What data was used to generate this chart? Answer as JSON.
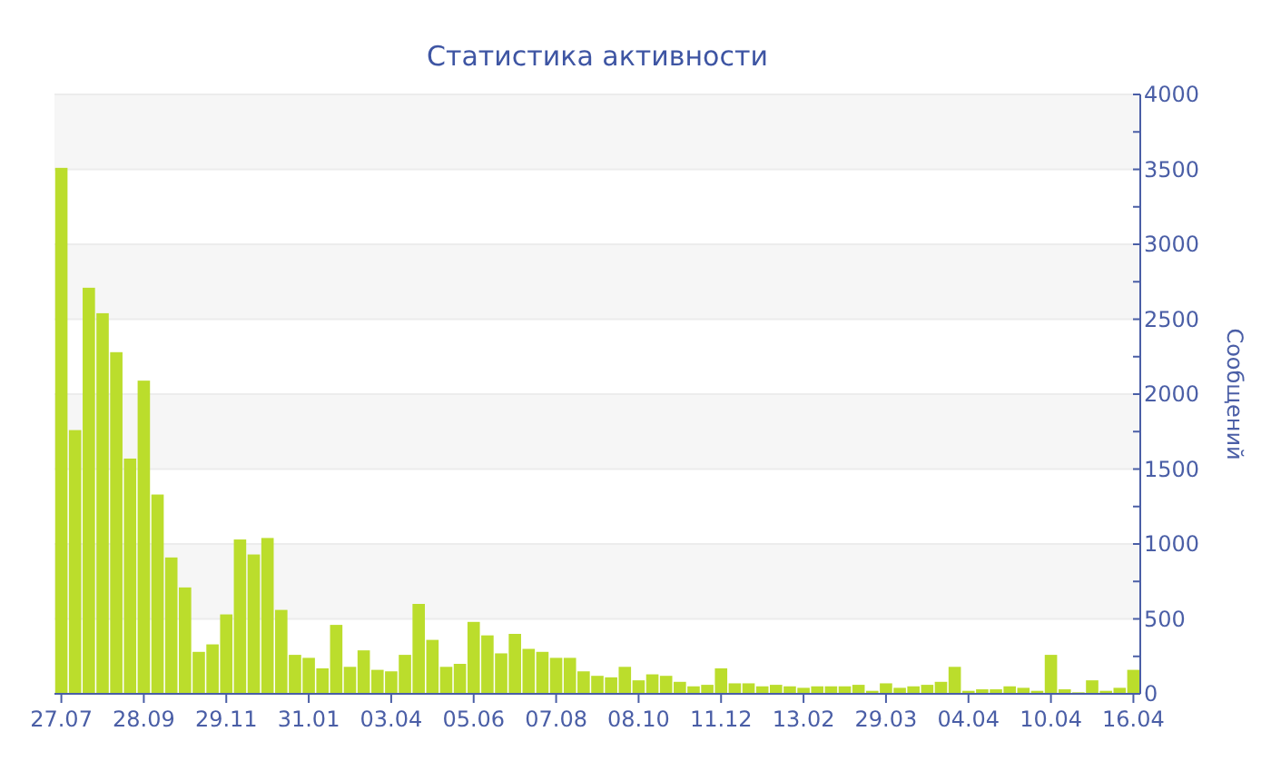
{
  "chart_data": {
    "type": "bar",
    "title": "Статистика активности",
    "y2label": "Сообщений",
    "categories": [
      "27.07",
      null,
      null,
      null,
      null,
      null,
      "28.09",
      null,
      null,
      null,
      null,
      null,
      "29.11",
      null,
      null,
      null,
      null,
      null,
      "31.01",
      null,
      null,
      null,
      null,
      null,
      "03.04",
      null,
      null,
      null,
      null,
      null,
      "05.06",
      null,
      null,
      null,
      null,
      null,
      "07.08",
      null,
      null,
      null,
      null,
      null,
      "08.10",
      null,
      null,
      null,
      null,
      null,
      "11.12",
      null,
      null,
      null,
      null,
      null,
      "13.02",
      null,
      null,
      null,
      null,
      null,
      "29.03",
      null,
      null,
      null,
      null,
      null,
      "04.04",
      null,
      null,
      null,
      null,
      null,
      "10.04",
      null,
      null,
      null,
      null,
      null,
      "16.04"
    ],
    "series": [
      {
        "color": "#bbdd2c",
        "axis": "y2",
        "values": [
          3510,
          1760,
          2710,
          2540,
          2280,
          1570,
          2090,
          1330,
          910,
          710,
          280,
          330,
          530,
          1030,
          930,
          1040,
          560,
          260,
          240,
          170,
          460,
          180,
          290,
          160,
          150,
          260,
          600,
          360,
          180,
          200,
          480,
          390,
          270,
          400,
          300,
          280,
          240,
          240,
          150,
          120,
          110,
          180,
          90,
          130,
          120,
          80,
          50,
          60,
          170,
          70,
          70,
          50,
          60,
          50,
          40,
          50,
          50,
          50,
          60,
          20,
          70,
          40,
          50,
          60,
          80,
          180,
          20,
          30,
          30,
          50,
          40,
          20,
          260,
          30,
          10,
          90,
          20,
          40,
          160
        ]
      }
    ],
    "y2lim": [
      0,
      4000
    ],
    "y2ticks": [
      0,
      {
        "value": 250,
        "label": null
      },
      500,
      {
        "value": 750,
        "label": null
      },
      1000,
      {
        "value": 1250,
        "label": null
      },
      1500,
      {
        "value": 1750,
        "label": null
      },
      2000,
      {
        "value": 2250,
        "label": null
      },
      2500,
      {
        "value": 2750,
        "label": null
      },
      3000,
      {
        "value": 3250,
        "label": null
      },
      3500,
      {
        "value": 3750,
        "label": null
      },
      4000
    ],
    "grid": "y"
  }
}
